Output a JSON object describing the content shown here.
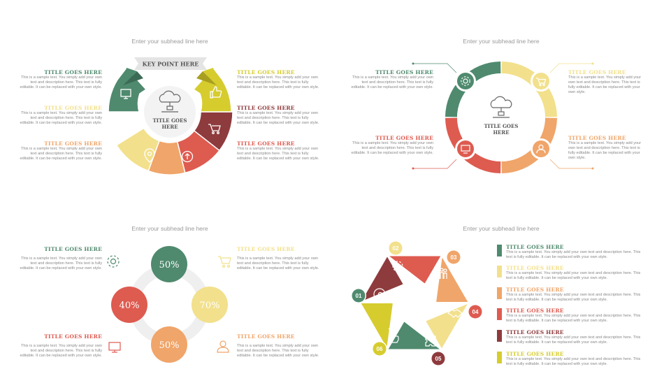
{
  "colors": {
    "green": "#4f8a6e",
    "yellow": "#d6cc2e",
    "light_yellow": "#f2e08c",
    "orange": "#f0a56a",
    "red": "#de5b50",
    "dark_red": "#8e3b3d",
    "gray_ring": "#eeeeee"
  },
  "subhead": "Enter your subhead line here",
  "sample_text": "This is a sample text. You simply add your own text and description here. This text is fully editable. It can be replaced with your own style.",
  "title_text": "TITLE GOES HERE",
  "q1": {
    "banner": "KEY POINT HERE",
    "center": [
      "TITLE GOES",
      "HERE"
    ],
    "icons": [
      "monitor-icon",
      "thumbs-up-icon",
      "search-icon",
      "cart-icon",
      "location-pin-icon",
      "upload-icon",
      "cloud-network-icon"
    ]
  },
  "q2": {
    "center": [
      "TITLE GOES",
      "HERE"
    ],
    "icons": [
      "gear-icon",
      "cart-icon",
      "monitor-icon",
      "user-icon",
      "cloud-network-icon"
    ]
  },
  "q3": {
    "percents": [
      {
        "label": "50%",
        "value": 50
      },
      {
        "label": "70%",
        "value": 70
      },
      {
        "label": "50%",
        "value": 50
      },
      {
        "label": "40%",
        "value": 40
      }
    ],
    "icons": [
      "gear-icon",
      "cart-icon",
      "monitor-icon",
      "user-icon"
    ]
  },
  "q4": {
    "numbers": [
      "01",
      "02",
      "03",
      "04",
      "05",
      "06"
    ],
    "legend_text": "This is a sample text. You simply add your own text and description here. This text is fully editable. It can be replaced with your own style.",
    "icons": [
      "head-gear-icon",
      "gear-icon",
      "team-icon",
      "handshake-icon",
      "puzzle-icon",
      "click-icon"
    ]
  }
}
